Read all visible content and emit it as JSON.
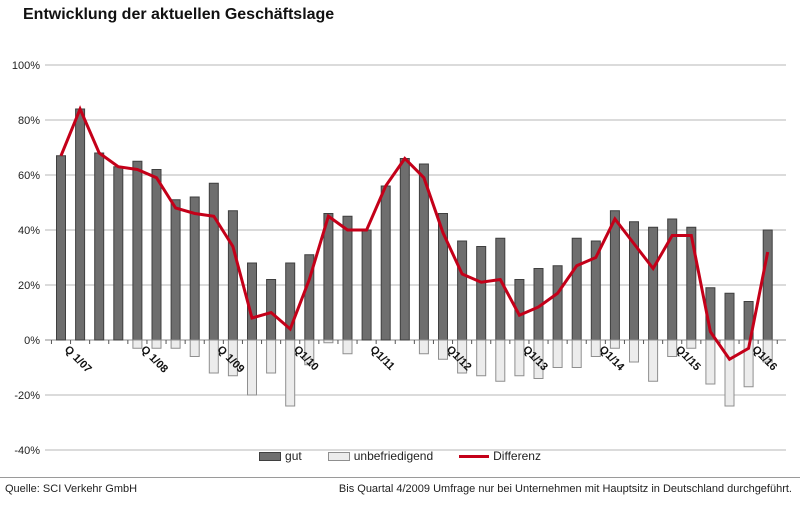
{
  "title": "Entwicklung der aktuellen Geschäftslage",
  "legend": {
    "gut": "gut",
    "unbefriedigend": "unbefriedigend",
    "differenz": "Differenz"
  },
  "footer": {
    "source": "Quelle: SCI Verkehr GmbH",
    "note": "Bis Quartal 4/2009 Umfrage nur bei Unternehmen mit Hauptsitz in Deutschland durchgeführt."
  },
  "colors": {
    "bar_gut_fill": "#6e6e6e",
    "bar_gut_stroke": "#3f3f3f",
    "bar_unbef_fill": "#ececec",
    "bar_unbef_stroke": "#8f8f8f",
    "line_differenz": "#c40019",
    "gridline": "#b7b7b7",
    "axis": "#8c8c8c",
    "text": "#222222"
  },
  "chart_data": {
    "type": "bar+line",
    "categories": [
      "Q1/07",
      "Q2/07",
      "Q3/07",
      "Q4/07",
      "Q1/08",
      "Q2/08",
      "Q3/08",
      "Q4/08",
      "Q1/09",
      "Q2/09",
      "Q3/09",
      "Q4/09",
      "Q1/10",
      "Q2/10",
      "Q3/10",
      "Q4/10",
      "Q1/11",
      "Q2/11",
      "Q3/11",
      "Q4/11",
      "Q1/12",
      "Q2/12",
      "Q3/12",
      "Q4/12",
      "Q1/13",
      "Q2/13",
      "Q3/13",
      "Q4/13",
      "Q1/14",
      "Q2/14",
      "Q3/14",
      "Q4/14",
      "Q1/15",
      "Q2/15",
      "Q3/15",
      "Q4/15",
      "Q1/16",
      "Q2/16"
    ],
    "x_tick_labels": [
      "Q 1/07",
      "Q 1/08",
      "Q 1/09",
      "Q1/10",
      "Q1/11",
      "Q1/12",
      "Q1/13",
      "Q1/14",
      "Q1/15",
      "Q1/16"
    ],
    "label_every": 4,
    "series": [
      {
        "name": "gut",
        "type": "bar",
        "values": [
          67,
          84,
          68,
          63,
          65,
          62,
          51,
          52,
          57,
          47,
          28,
          22,
          28,
          31,
          46,
          45,
          40,
          56,
          66,
          64,
          46,
          36,
          34,
          37,
          22,
          26,
          27,
          37,
          36,
          47,
          43,
          41,
          44,
          41,
          19,
          17,
          14,
          40
        ]
      },
      {
        "name": "unbefriedigend",
        "type": "bar",
        "values": [
          0,
          0,
          0,
          0,
          -3,
          -3,
          -3,
          -6,
          -12,
          -13,
          -20,
          -12,
          -24,
          -9,
          -1,
          -5,
          0,
          0,
          0,
          -5,
          -7,
          -12,
          -13,
          -15,
          -13,
          -14,
          -10,
          -10,
          -6,
          -3,
          -8,
          -15,
          -6,
          -3,
          -16,
          -24,
          -17,
          -8
        ]
      },
      {
        "name": "Differenz",
        "type": "line",
        "values": [
          67,
          84,
          68,
          63,
          62,
          59,
          48,
          46,
          45,
          34,
          8,
          10,
          4,
          22,
          45,
          40,
          40,
          56,
          66,
          59,
          39,
          24,
          21,
          22,
          9,
          12,
          17,
          27,
          30,
          44,
          35,
          26,
          38,
          38,
          3,
          -7,
          -3,
          32
        ]
      }
    ],
    "ylabel": "",
    "xlabel": "",
    "ylim": [
      -40,
      100
    ],
    "y_ticks": [
      100,
      80,
      60,
      40,
      20,
      0,
      -20,
      -40
    ],
    "y_tick_labels": [
      "100%",
      "80%",
      "60%",
      "40%",
      "20%",
      "0%",
      "-20%",
      "-40%"
    ],
    "grid": true,
    "legend_position": "bottom"
  }
}
